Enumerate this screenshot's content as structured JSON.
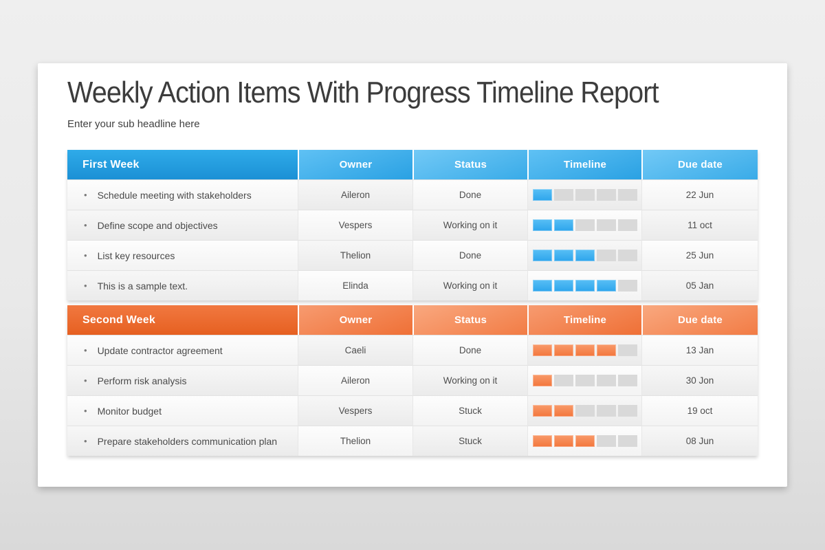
{
  "page": {
    "title": "Weekly Action Items With Progress Timeline Report",
    "subtitle": "Enter your sub headline here"
  },
  "columns": {
    "owner": "Owner",
    "status": "Status",
    "timeline": "Timeline",
    "due": "Due date"
  },
  "weeks": [
    {
      "label": "First Week",
      "theme": "blue",
      "accent_color": "#2ea7ec",
      "rows": [
        {
          "task": "Schedule meeting with stakeholders",
          "owner": "Aileron",
          "status": "Done",
          "progress": 1,
          "segments": 5,
          "due": "22 Jun"
        },
        {
          "task": "Define scope and objectives",
          "owner": "Vespers",
          "status": "Working on it",
          "progress": 2,
          "segments": 5,
          "due": "11 oct"
        },
        {
          "task": "List key resources",
          "owner": "Thelion",
          "status": "Done",
          "progress": 3,
          "segments": 5,
          "due": "25 Jun"
        },
        {
          "task": "This is a sample text.",
          "owner": "Elinda",
          "status": "Working on it",
          "progress": 4,
          "segments": 5,
          "due": "05 Jan"
        }
      ]
    },
    {
      "label": "Second Week",
      "theme": "orange",
      "accent_color": "#f1773f",
      "rows": [
        {
          "task": "Update contractor agreement",
          "owner": "Caeli",
          "status": "Done",
          "progress": 4,
          "segments": 5,
          "due": "13 Jan"
        },
        {
          "task": "Perform risk analysis",
          "owner": "Aileron",
          "status": "Working on it",
          "progress": 1,
          "segments": 5,
          "due": "30 Jon"
        },
        {
          "task": "Monitor budget",
          "owner": "Vespers",
          "status": "Stuck",
          "progress": 2,
          "segments": 5,
          "due": "19 oct"
        },
        {
          "task": "Prepare stakeholders communication plan",
          "owner": "Thelion",
          "status": "Stuck",
          "progress": 3,
          "segments": 5,
          "due": "08 Jun"
        }
      ]
    }
  ],
  "colors": {
    "background": "#e9e9e9",
    "card": "#ffffff",
    "blue_header": "#1b90d5",
    "orange_header": "#e66021",
    "segment_empty": "#d9d9d9",
    "text_dark": "#3c3c3c",
    "text_body": "#4e4e4e"
  },
  "icons": {
    "bullet": "•"
  }
}
